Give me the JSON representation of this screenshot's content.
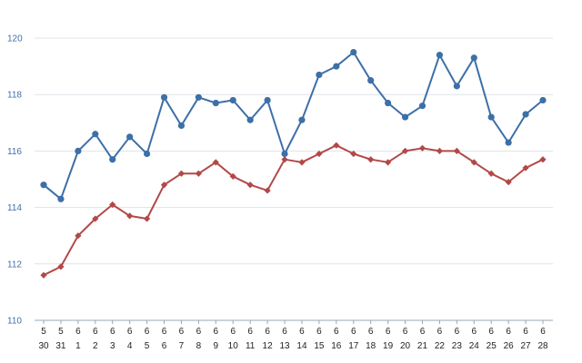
{
  "chart_data": {
    "type": "line",
    "title": "",
    "xlabel": "",
    "ylabel": "",
    "ylim": [
      110,
      120
    ],
    "yticks": [
      110,
      112,
      114,
      116,
      118,
      120
    ],
    "grid": true,
    "legend": "none",
    "categories": [
      {
        "month": "5",
        "day": "30"
      },
      {
        "month": "5",
        "day": "31"
      },
      {
        "month": "6",
        "day": "1"
      },
      {
        "month": "6",
        "day": "2"
      },
      {
        "month": "6",
        "day": "3"
      },
      {
        "month": "6",
        "day": "4"
      },
      {
        "month": "6",
        "day": "5"
      },
      {
        "month": "6",
        "day": "6"
      },
      {
        "month": "6",
        "day": "7"
      },
      {
        "month": "6",
        "day": "8"
      },
      {
        "month": "6",
        "day": "9"
      },
      {
        "month": "6",
        "day": "10"
      },
      {
        "month": "6",
        "day": "11"
      },
      {
        "month": "6",
        "day": "12"
      },
      {
        "month": "6",
        "day": "13"
      },
      {
        "month": "6",
        "day": "14"
      },
      {
        "month": "6",
        "day": "15"
      },
      {
        "month": "6",
        "day": "16"
      },
      {
        "month": "6",
        "day": "17"
      },
      {
        "month": "6",
        "day": "18"
      },
      {
        "month": "6",
        "day": "19"
      },
      {
        "month": "6",
        "day": "20"
      },
      {
        "month": "6",
        "day": "21"
      },
      {
        "month": "6",
        "day": "22"
      },
      {
        "month": "6",
        "day": "23"
      },
      {
        "month": "6",
        "day": "24"
      },
      {
        "month": "6",
        "day": "25"
      },
      {
        "month": "6",
        "day": "26"
      },
      {
        "month": "6",
        "day": "27"
      },
      {
        "month": "6",
        "day": "28"
      }
    ],
    "series": [
      {
        "color": "#3d6fa8",
        "marker": "circle",
        "values": [
          114.8,
          114.3,
          116.0,
          116.6,
          115.7,
          116.5,
          115.9,
          117.9,
          116.9,
          117.9,
          117.7,
          117.8,
          117.1,
          117.8,
          115.9,
          117.1,
          118.7,
          119.0,
          119.5,
          118.5,
          117.7,
          117.2,
          117.6,
          119.4,
          118.3,
          119.3,
          117.2,
          116.3,
          117.3,
          117.8
        ]
      },
      {
        "color": "#b34848",
        "marker": "diamond",
        "values": [
          111.6,
          111.9,
          113.0,
          113.6,
          114.1,
          113.7,
          113.6,
          114.8,
          115.2,
          115.2,
          115.6,
          115.1,
          114.8,
          114.6,
          115.7,
          115.6,
          115.9,
          116.2,
          115.9,
          115.7,
          115.6,
          116.0,
          116.1,
          116.0,
          116.0,
          115.6,
          115.2,
          114.9,
          115.4,
          115.7
        ]
      }
    ]
  }
}
